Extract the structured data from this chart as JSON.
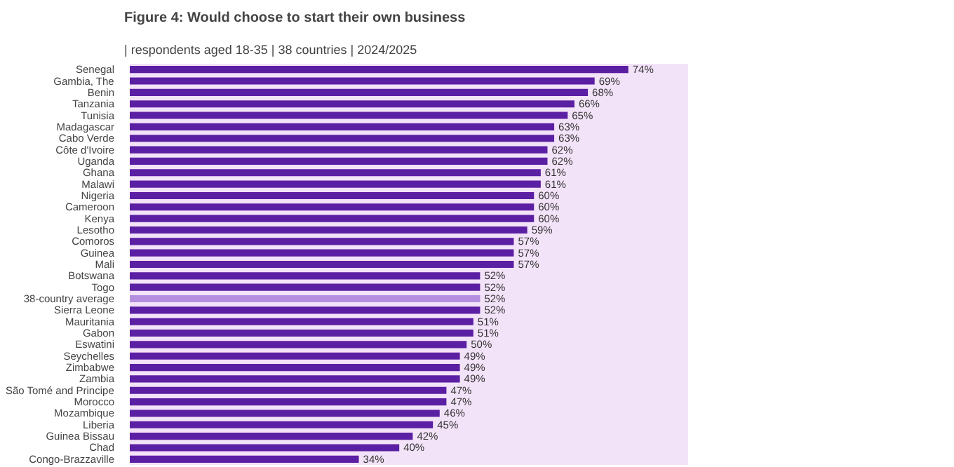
{
  "chart_data": {
    "type": "bar",
    "orientation": "horizontal",
    "title": "Figure 4: Would choose to start their own business",
    "subtitle": "| respondents aged 18-35 | 38 countries | 2024/2025",
    "categories": [
      "Senegal",
      "Gambia, The",
      "Benin",
      "Tanzania",
      "Tunisia",
      "Madagascar",
      "Cabo Verde",
      "Côte d'Ivoire",
      "Uganda",
      "Ghana",
      "Malawi",
      "Nigeria",
      "Cameroon",
      "Kenya",
      "Lesotho",
      "Comoros",
      "Guinea",
      "Mali",
      "Botswana",
      "Togo",
      "38-country average",
      "Sierra Leone",
      "Mauritania",
      "Gabon",
      "Eswatini",
      "Seychelles",
      "Zimbabwe",
      "Zambia",
      "São Tomé and Principe",
      "Morocco",
      "Mozambique",
      "Liberia",
      "Guinea Bissau",
      "Chad",
      "Congo-Brazzaville"
    ],
    "values": [
      74,
      69,
      68,
      66,
      65,
      63,
      63,
      62,
      62,
      61,
      61,
      60,
      60,
      60,
      59,
      57,
      57,
      57,
      52,
      52,
      52,
      52,
      51,
      51,
      50,
      49,
      49,
      49,
      47,
      47,
      46,
      45,
      42,
      40,
      34
    ],
    "colors": [
      "#5b1fa3",
      "#5b1fa3",
      "#5b1fa3",
      "#5b1fa3",
      "#5b1fa3",
      "#5b1fa3",
      "#5b1fa3",
      "#5b1fa3",
      "#5b1fa3",
      "#5b1fa3",
      "#5b1fa3",
      "#5b1fa3",
      "#5b1fa3",
      "#5b1fa3",
      "#5b1fa3",
      "#5b1fa3",
      "#5b1fa3",
      "#5b1fa3",
      "#5b1fa3",
      "#5b1fa3",
      "#b48fe0",
      "#5b1fa3",
      "#5b1fa3",
      "#5b1fa3",
      "#5b1fa3",
      "#5b1fa3",
      "#5b1fa3",
      "#5b1fa3",
      "#5b1fa3",
      "#5b1fa3",
      "#5b1fa3",
      "#5b1fa3",
      "#5b1fa3",
      "#5b1fa3",
      "#5b1fa3"
    ],
    "value_labels": [
      "74%",
      "69%",
      "68%",
      "66%",
      "65%",
      "63%",
      "63%",
      "62%",
      "62%",
      "61%",
      "61%",
      "60%",
      "60%",
      "60%",
      "59%",
      "57%",
      "57%",
      "57%",
      "52%",
      "52%",
      "52%",
      "52%",
      "51%",
      "51%",
      "50%",
      "49%",
      "49%",
      "49%",
      "47%",
      "47%",
      "46%",
      "45%",
      "42%",
      "40%",
      "34%"
    ],
    "grid": false
  }
}
